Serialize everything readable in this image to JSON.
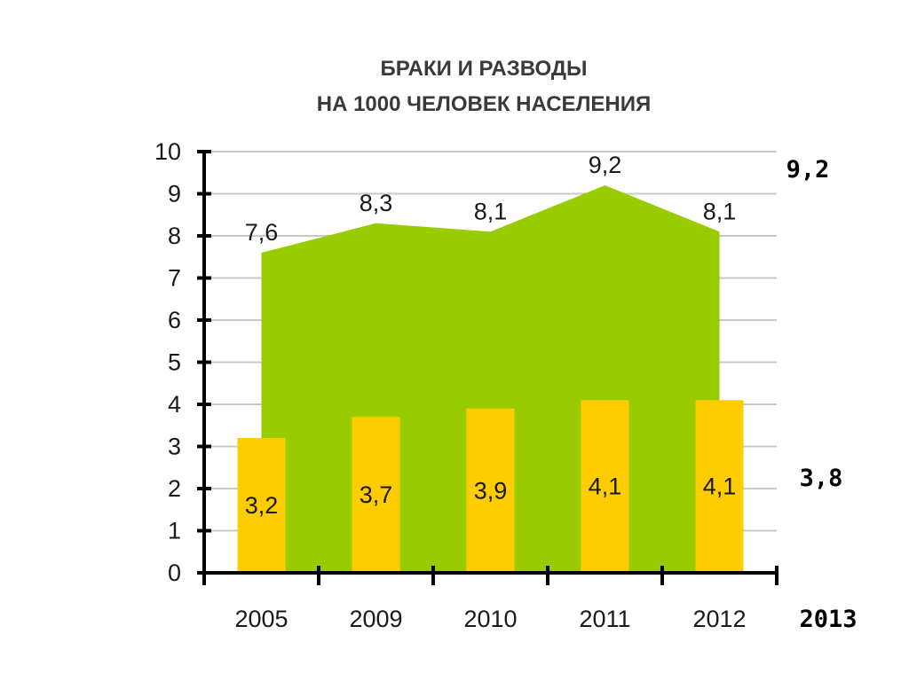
{
  "chart_data": {
    "type": "area+bar",
    "title_lines": [
      "БРАКИ И РАЗВОДЫ",
      "НА 1000 ЧЕЛОВЕК НАСЕЛЕНИЯ"
    ],
    "categories": [
      "2005",
      "2009",
      "2010",
      "2011",
      "2012"
    ],
    "series": [
      {
        "kind": "area",
        "values": [
          7.6,
          8.3,
          8.1,
          9.2,
          8.1
        ],
        "labels": [
          "7,6",
          "8,3",
          "8,1",
          "9,2",
          "8,1"
        ]
      },
      {
        "kind": "bar",
        "values": [
          3.2,
          3.7,
          3.9,
          4.1,
          4.1
        ],
        "labels": [
          "3,2",
          "3,7",
          "3,9",
          "4,1",
          "4,1"
        ]
      }
    ],
    "ylim": [
      0,
      10
    ],
    "yticks": [
      "0",
      "1",
      "2",
      "3",
      "4",
      "5",
      "6",
      "7",
      "8",
      "9",
      "10"
    ],
    "grid": true,
    "extra": {
      "year": "2013",
      "area_value": 9.2,
      "area_label": "9,2",
      "bar_value": 3.8,
      "bar_label": "3,8"
    },
    "colors": {
      "area": "#99cc00",
      "bar": "#ffcc00",
      "grid": "#c8c8c8",
      "axis": "#000000"
    }
  }
}
